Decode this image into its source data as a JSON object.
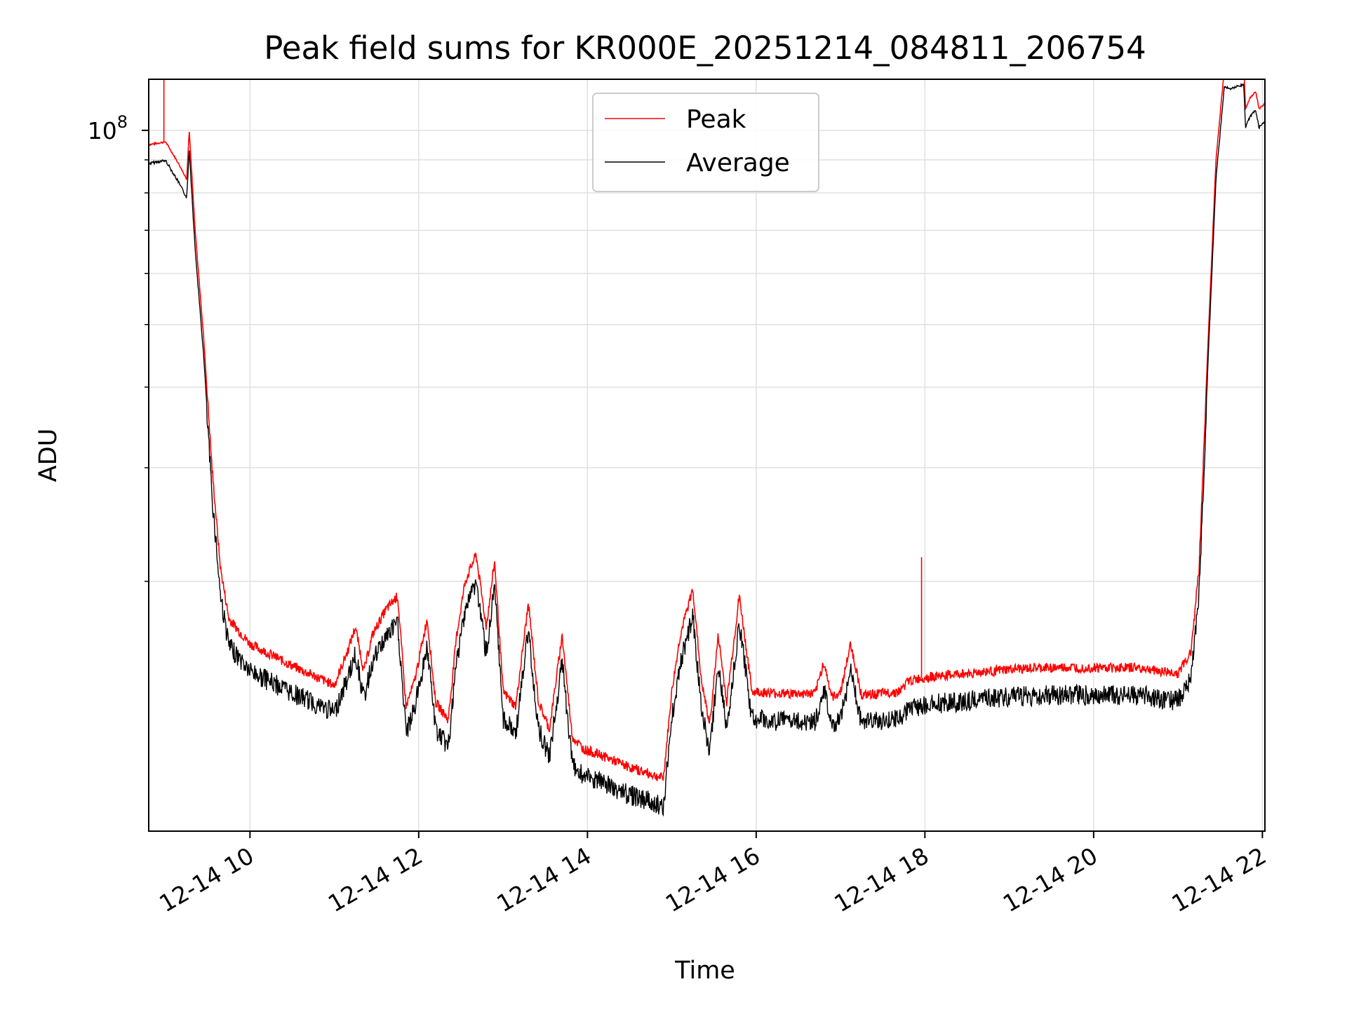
{
  "chart_data": {
    "type": "line",
    "title": "Peak field sums for KR000E_20251214_084811_206754",
    "xlabel": "Time",
    "ylabel": "ADU",
    "yscale": "log",
    "ylim": [
      8200000,
      120000000
    ],
    "xlim": [
      8.8,
      22.03
    ],
    "x_ticks": [
      {
        "value": 10,
        "label": "12-14 10"
      },
      {
        "value": 12,
        "label": "12-14 12"
      },
      {
        "value": 14,
        "label": "12-14 14"
      },
      {
        "value": 16,
        "label": "12-14 16"
      },
      {
        "value": 18,
        "label": "12-14 18"
      },
      {
        "value": 20,
        "label": "12-14 20"
      },
      {
        "value": 22,
        "label": "12-14 22"
      }
    ],
    "y_ticks": [
      {
        "value": 100000000,
        "base": "10",
        "exp": "8"
      }
    ],
    "y_minor_ticks": [
      20000000,
      30000000,
      40000000,
      50000000,
      60000000,
      70000000,
      80000000,
      90000000
    ],
    "grid": true,
    "legend_position": "top-center",
    "colors": {
      "peak": "#ff0000",
      "average": "#000000",
      "grid": "#e0e0e0"
    },
    "series": [
      {
        "name": "Peak",
        "color": "#ff0000",
        "spikes": [
          {
            "x": 8.98,
            "y": 125000000
          },
          {
            "x": 17.96,
            "y": 21800000
          }
        ]
      },
      {
        "name": "Average",
        "color": "#000000"
      }
    ],
    "x": [
      8.8,
      9.0,
      9.15,
      9.25,
      9.28,
      9.35,
      9.45,
      9.55,
      9.65,
      9.75,
      10.0,
      10.5,
      11.0,
      11.15,
      11.25,
      11.35,
      11.45,
      11.6,
      11.75,
      11.85,
      11.95,
      12.1,
      12.2,
      12.35,
      12.45,
      12.55,
      12.68,
      12.8,
      12.9,
      13.0,
      13.15,
      13.3,
      13.42,
      13.55,
      13.7,
      13.82,
      13.95,
      14.2,
      14.5,
      14.9,
      15.0,
      15.1,
      15.25,
      15.35,
      15.45,
      15.55,
      15.65,
      15.8,
      15.95,
      16.3,
      16.7,
      16.8,
      16.9,
      17.0,
      17.12,
      17.25,
      17.7,
      17.8,
      18.0,
      18.5,
      19.0,
      19.5,
      20.0,
      20.5,
      21.0,
      21.15,
      21.25,
      21.35,
      21.45,
      21.55,
      21.6,
      21.78,
      21.8,
      21.85,
      21.92,
      21.96,
      22.03
    ],
    "values": [
      95000000,
      96000000,
      89000000,
      84000000,
      100000000,
      70000000,
      48000000,
      30000000,
      21000000,
      17500000,
      16000000,
      14800000,
      13800000,
      15500000,
      17000000,
      14500000,
      16500000,
      18000000,
      19000000,
      12800000,
      14000000,
      17500000,
      13000000,
      12200000,
      16500000,
      20000000,
      22000000,
      17000000,
      21500000,
      13500000,
      12800000,
      18500000,
      13000000,
      11800000,
      16500000,
      11500000,
      11000000,
      10700000,
      10300000,
      9900000,
      13500000,
      16500000,
      19500000,
      14000000,
      12000000,
      16500000,
      13000000,
      19000000,
      13500000,
      13400000,
      13400000,
      15000000,
      13200000,
      13500000,
      16000000,
      13300000,
      13500000,
      14000000,
      14200000,
      14400000,
      14600000,
      14700000,
      14700000,
      14700000,
      14400000,
      15500000,
      21000000,
      45000000,
      90000000,
      125000000,
      124000000,
      126000000,
      108000000,
      112000000,
      115000000,
      108000000,
      110000000
    ],
    "average_ratio": 0.94
  }
}
